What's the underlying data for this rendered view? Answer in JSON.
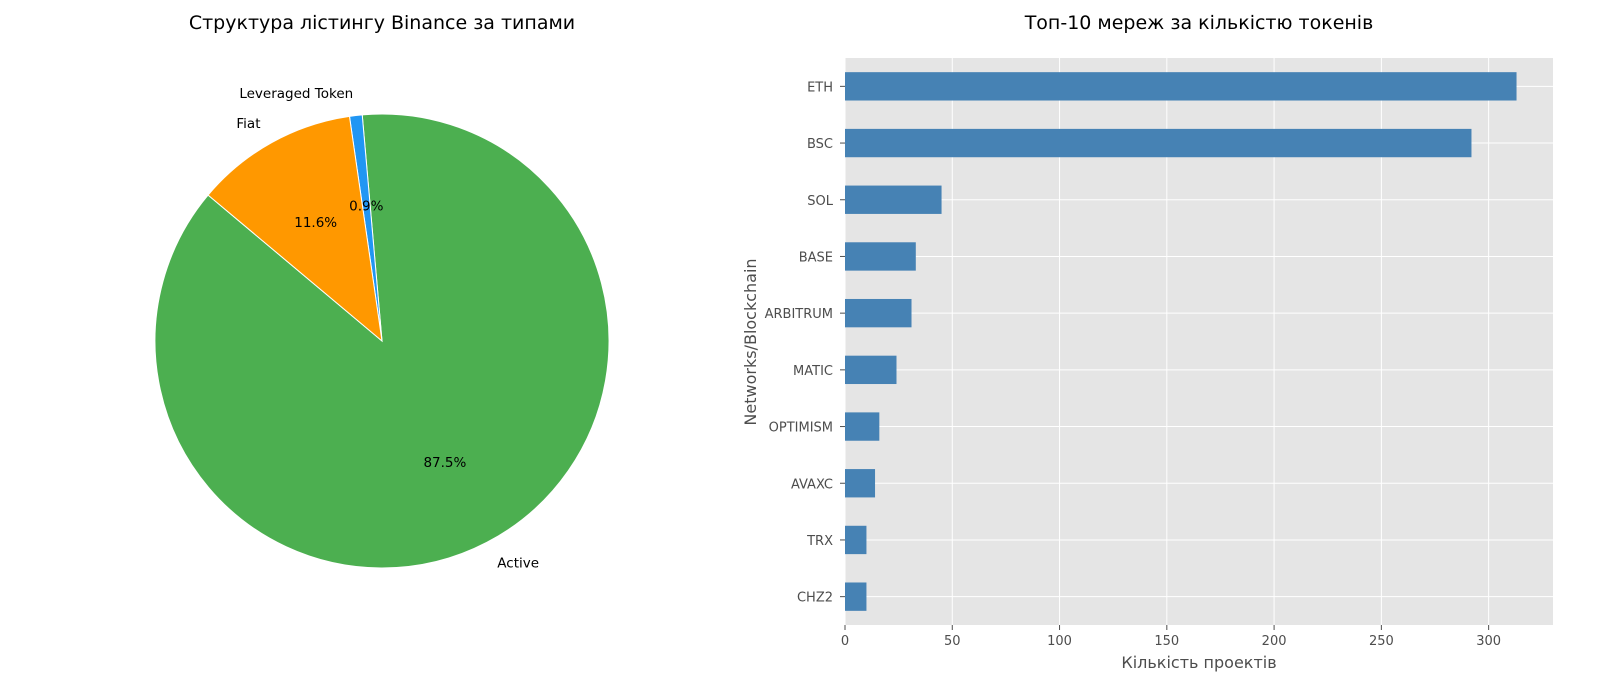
{
  "chart_data": [
    {
      "type": "pie",
      "title": "Структура лістингу Binance за типами",
      "slices": [
        {
          "label": "Active",
          "value": 87.5,
          "pct_label": "87.5%",
          "color": "#4caf50"
        },
        {
          "label": "Leveraged Token",
          "value": 0.9,
          "pct_label": "0.9%",
          "color": "#2196f3"
        },
        {
          "label": "Fiat",
          "value": 11.6,
          "pct_label": "11.6%",
          "color": "#ff9800"
        }
      ]
    },
    {
      "type": "bar",
      "orientation": "horizontal",
      "title": "Топ-10 мереж за кількістю токенів",
      "xlabel": "Кількість проектів",
      "ylabel": "Networks/Blockchain",
      "categories": [
        "ETH",
        "BSC",
        "SOL",
        "BASE",
        "ARBITRUM",
        "MATIC",
        "OPTIMISM",
        "AVAXC",
        "TRX",
        "CHZ2"
      ],
      "values": [
        313,
        292,
        45,
        33,
        31,
        24,
        16,
        14,
        10,
        10
      ],
      "xlim": [
        0,
        330
      ],
      "xticks": [
        0,
        50,
        100,
        150,
        200,
        250,
        300
      ],
      "grid": true,
      "bar_color": "#4682b4",
      "background_color": "#e5e5e5"
    }
  ]
}
